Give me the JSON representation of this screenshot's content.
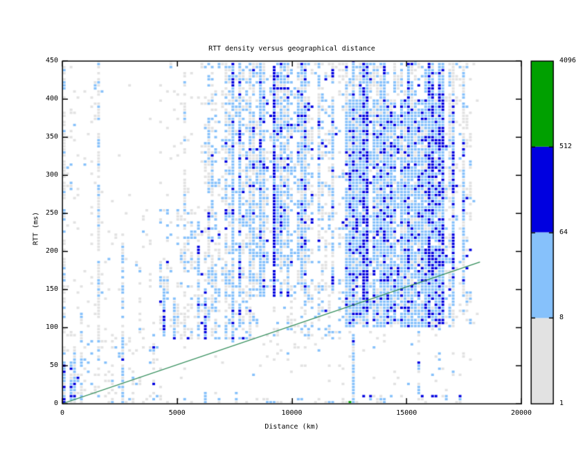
{
  "chart_data": {
    "type": "heatmap",
    "title": "RTT density versus geographical distance",
    "xlabel": "Distance (km)",
    "ylabel": "RTT (ms)",
    "xlim": [
      0,
      20000
    ],
    "ylim": [
      0,
      450
    ],
    "xticks": {
      "values": [
        0,
        5000,
        10000,
        15000,
        20000
      ],
      "labels": [
        "0",
        "5000",
        "10000",
        "15000",
        "20000"
      ]
    },
    "yticks": {
      "values": [
        0,
        50,
        100,
        150,
        200,
        250,
        300,
        350,
        400,
        450
      ],
      "labels": [
        "0",
        "50",
        "100",
        "150",
        "200",
        "250",
        "300",
        "350",
        "400",
        "450"
      ]
    },
    "grid": false,
    "legend_position": "none",
    "palette": {
      "gray": "#e2e2e2",
      "light_blue": "#86c1fb",
      "blue": "#0000e0",
      "green": "#00a000"
    },
    "colorbar": {
      "position": "right",
      "scale": "log",
      "levels_bottom_to_top": [
        "1",
        "8",
        "64",
        "512",
        "4096"
      ],
      "segment_colors_bottom_to_top": [
        "#e2e2e2",
        "#86c1fb",
        "#0000e0",
        "#00a000"
      ],
      "segment_ranges": [
        [
          1,
          8
        ],
        [
          8,
          64
        ],
        [
          64,
          512
        ],
        [
          512,
          4096
        ]
      ]
    },
    "reference_line": {
      "name": "distance-vs-min-rtt-bound",
      "points_km_ms": [
        [
          0,
          0
        ],
        [
          18200,
          186
        ]
      ],
      "color": "#2e8b57"
    },
    "bins": {
      "x_km": 150,
      "y_ms": 4
    },
    "density_model": {
      "seed": 11,
      "weight_order": [
        "gray",
        "light_blue",
        "blue"
      ],
      "regions": [
        {
          "x": [
            0,
            18200
          ],
          "y": [
            0,
            450
          ],
          "p": 0.012,
          "w": [
            0.92,
            0.08,
            0
          ]
        },
        {
          "x": [
            0,
            1800
          ],
          "y": [
            0,
            450
          ],
          "p": 0.05,
          "w": [
            0.78,
            0.22,
            0
          ]
        },
        {
          "x": [
            1800,
            4200
          ],
          "y": [
            0,
            250
          ],
          "p": 0.035,
          "w": [
            0.85,
            0.15,
            0
          ]
        },
        {
          "x": [
            4200,
            6300
          ],
          "y": [
            85,
            255
          ],
          "p": 0.2,
          "w": [
            0.55,
            0.4,
            0.05
          ]
        },
        {
          "x": [
            4200,
            6300
          ],
          "y": [
            255,
            448
          ],
          "p": 0.06,
          "w": [
            0.85,
            0.15,
            0
          ]
        },
        {
          "x": [
            6300,
            8300
          ],
          "y": [
            85,
            448
          ],
          "p": 0.3,
          "w": [
            0.45,
            0.5,
            0.05
          ]
        },
        {
          "x": [
            8300,
            10600
          ],
          "y": [
            140,
            448
          ],
          "p": 0.42,
          "w": [
            0.3,
            0.6,
            0.1
          ]
        },
        {
          "x": [
            8300,
            10600
          ],
          "y": [
            85,
            140
          ],
          "p": 0.15,
          "w": [
            0.6,
            0.4,
            0
          ]
        },
        {
          "x": [
            10600,
            12400
          ],
          "y": [
            85,
            448
          ],
          "p": 0.25,
          "w": [
            0.55,
            0.4,
            0.05
          ]
        },
        {
          "x": [
            12400,
            16600
          ],
          "y": [
            100,
            400
          ],
          "p": 0.78,
          "w": [
            0.18,
            0.66,
            0.16
          ]
        },
        {
          "x": [
            12400,
            16600
          ],
          "y": [
            400,
            448
          ],
          "p": 0.5,
          "w": [
            0.5,
            0.44,
            0.06
          ]
        },
        {
          "x": [
            16600,
            17800
          ],
          "y": [
            100,
            448
          ],
          "p": 0.3,
          "w": [
            0.62,
            0.33,
            0.05
          ]
        },
        {
          "x": [
            12400,
            17800
          ],
          "y": [
            0,
            100
          ],
          "p": 0.04,
          "w": [
            0.6,
            0.4,
            0
          ]
        },
        {
          "x": [
            0,
            700
          ],
          "y": [
            0,
            56
          ],
          "p": 0.5,
          "w": [
            0.35,
            0.45,
            0.2
          ]
        },
        {
          "x": [
            700,
            4200
          ],
          "y": [
            0,
            85
          ],
          "p": 0.1,
          "w": [
            0.6,
            0.35,
            0.05
          ]
        },
        {
          "x": [
            8000,
            12400
          ],
          "y": [
            28,
            85
          ],
          "p": 0.03,
          "w": [
            0.8,
            0.2,
            0
          ]
        },
        {
          "x": [
            0,
            13000
          ],
          "y": [
            0,
            8
          ],
          "p": 0.15,
          "w": [
            0.5,
            0.45,
            0.05
          ]
        },
        {
          "x": [
            12900,
            14300
          ],
          "y": [
            0,
            10
          ],
          "p": 0.3,
          "w": [
            0.3,
            0.55,
            0.15
          ]
        },
        {
          "x": [
            15600,
            17400
          ],
          "y": [
            0,
            10
          ],
          "p": 0.32,
          "w": [
            0.3,
            0.5,
            0.2
          ]
        }
      ],
      "stripes": [
        {
          "km": 0,
          "y": [
            0,
            450
          ],
          "p": 0.5,
          "w": [
            0.7,
            0.3,
            0
          ],
          "cols": 1
        },
        {
          "km": 450,
          "y": [
            0,
            60
          ],
          "p": 0.6,
          "w": [
            0.3,
            0.5,
            0.2
          ],
          "cols": 1
        },
        {
          "km": 750,
          "y": [
            0,
            120
          ],
          "p": 0.5,
          "w": [
            0.4,
            0.5,
            0.1
          ],
          "cols": 1
        },
        {
          "km": 1450,
          "y": [
            0,
            450
          ],
          "p": 0.55,
          "w": [
            0.72,
            0.28,
            0
          ],
          "cols": 1
        },
        {
          "km": 2600,
          "y": [
            0,
            210
          ],
          "p": 0.5,
          "w": [
            0.4,
            0.55,
            0.05
          ],
          "cols": 1
        },
        {
          "km": 3300,
          "y": [
            60,
            180
          ],
          "p": 0.35,
          "w": [
            0.6,
            0.4,
            0
          ],
          "cols": 1
        },
        {
          "km": 4300,
          "y": [
            85,
            165
          ],
          "p": 0.8,
          "w": [
            0.2,
            0.55,
            0.25
          ],
          "cols": 1
        },
        {
          "km": 4800,
          "y": [
            85,
            140
          ],
          "p": 0.65,
          "w": [
            0.3,
            0.6,
            0.1
          ],
          "cols": 1
        },
        {
          "km": 5280,
          "y": [
            85,
            448
          ],
          "p": 0.45,
          "w": [
            0.8,
            0.2,
            0
          ],
          "cols": 1
        },
        {
          "km": 5800,
          "y": [
            85,
            240
          ],
          "p": 0.5,
          "w": [
            0.4,
            0.5,
            0.1
          ],
          "cols": 1
        },
        {
          "km": 6150,
          "y": [
            85,
            150
          ],
          "p": 0.85,
          "w": [
            0.1,
            0.35,
            0.55
          ],
          "cols": 1
        },
        {
          "km": 6150,
          "y": [
            150,
            448
          ],
          "p": 0.3,
          "w": [
            0.7,
            0.3,
            0
          ],
          "cols": 1
        },
        {
          "km": 6100,
          "y": [
            0,
            20
          ],
          "p": 0.5,
          "w": [
            0.3,
            0.7,
            0
          ],
          "cols": 1
        },
        {
          "km": 7000,
          "y": [
            85,
            448
          ],
          "p": 0.45,
          "w": [
            0.5,
            0.45,
            0.05
          ],
          "cols": 1
        },
        {
          "km": 7350,
          "y": [
            80,
            448
          ],
          "p": 0.75,
          "w": [
            0.2,
            0.65,
            0.15
          ],
          "cols": 1
        },
        {
          "km": 7500,
          "y": [
            0,
            20
          ],
          "p": 0.4,
          "w": [
            0.4,
            0.6,
            0
          ],
          "cols": 1
        },
        {
          "km": 7700,
          "y": [
            100,
            448
          ],
          "p": 0.6,
          "w": [
            0.3,
            0.6,
            0.1
          ],
          "cols": 1
        },
        {
          "km": 8600,
          "y": [
            140,
            448
          ],
          "p": 0.55,
          "w": [
            0.35,
            0.55,
            0.1
          ],
          "cols": 1
        },
        {
          "km": 9170,
          "y": [
            140,
            448
          ],
          "p": 0.95,
          "w": [
            0.05,
            0.25,
            0.7
          ],
          "cols": 1
        },
        {
          "km": 9600,
          "y": [
            200,
            448
          ],
          "p": 0.5,
          "w": [
            0.4,
            0.5,
            0.1
          ],
          "cols": 1
        },
        {
          "km": 10300,
          "y": [
            150,
            448
          ],
          "p": 0.55,
          "w": [
            0.35,
            0.55,
            0.1
          ],
          "cols": 1
        },
        {
          "km": 11100,
          "y": [
            200,
            448
          ],
          "p": 0.5,
          "w": [
            0.4,
            0.5,
            0.1
          ],
          "cols": 1
        },
        {
          "km": 11700,
          "y": [
            150,
            448
          ],
          "p": 0.6,
          "w": [
            0.3,
            0.55,
            0.15
          ],
          "cols": 1
        },
        {
          "km": 12600,
          "y": [
            0,
            450
          ],
          "p": 0.8,
          "w": [
            0.15,
            0.7,
            0.15
          ],
          "cols": 1
        },
        {
          "km": 13100,
          "y": [
            100,
            448
          ],
          "p": 0.85,
          "w": [
            0.1,
            0.55,
            0.35
          ],
          "cols": 2
        },
        {
          "km": 14000,
          "y": [
            100,
            448
          ],
          "p": 0.7,
          "w": [
            0.2,
            0.65,
            0.15
          ],
          "cols": 1
        },
        {
          "km": 15000,
          "y": [
            100,
            448
          ],
          "p": 0.7,
          "w": [
            0.2,
            0.6,
            0.2
          ],
          "cols": 1
        },
        {
          "km": 15500,
          "y": [
            0,
            100
          ],
          "p": 0.4,
          "w": [
            0.4,
            0.55,
            0.05
          ],
          "cols": 1
        },
        {
          "km": 15900,
          "y": [
            100,
            448
          ],
          "p": 0.85,
          "w": [
            0.1,
            0.45,
            0.45
          ],
          "cols": 2
        },
        {
          "km": 16400,
          "y": [
            100,
            448
          ],
          "p": 0.8,
          "w": [
            0.12,
            0.48,
            0.4
          ],
          "cols": 2
        },
        {
          "km": 16900,
          "y": [
            130,
            400
          ],
          "p": 0.7,
          "w": [
            0.2,
            0.4,
            0.4
          ],
          "cols": 1
        },
        {
          "km": 17400,
          "y": [
            150,
            420
          ],
          "p": 0.45,
          "w": [
            0.5,
            0.4,
            0.1
          ],
          "cols": 1
        }
      ],
      "explicit_cells": [
        {
          "km": 12550,
          "ms": 2,
          "color": "green"
        },
        {
          "km": 0,
          "ms": 0,
          "color": "blue"
        },
        {
          "km": 75,
          "ms": 4,
          "color": "blue"
        }
      ]
    }
  }
}
